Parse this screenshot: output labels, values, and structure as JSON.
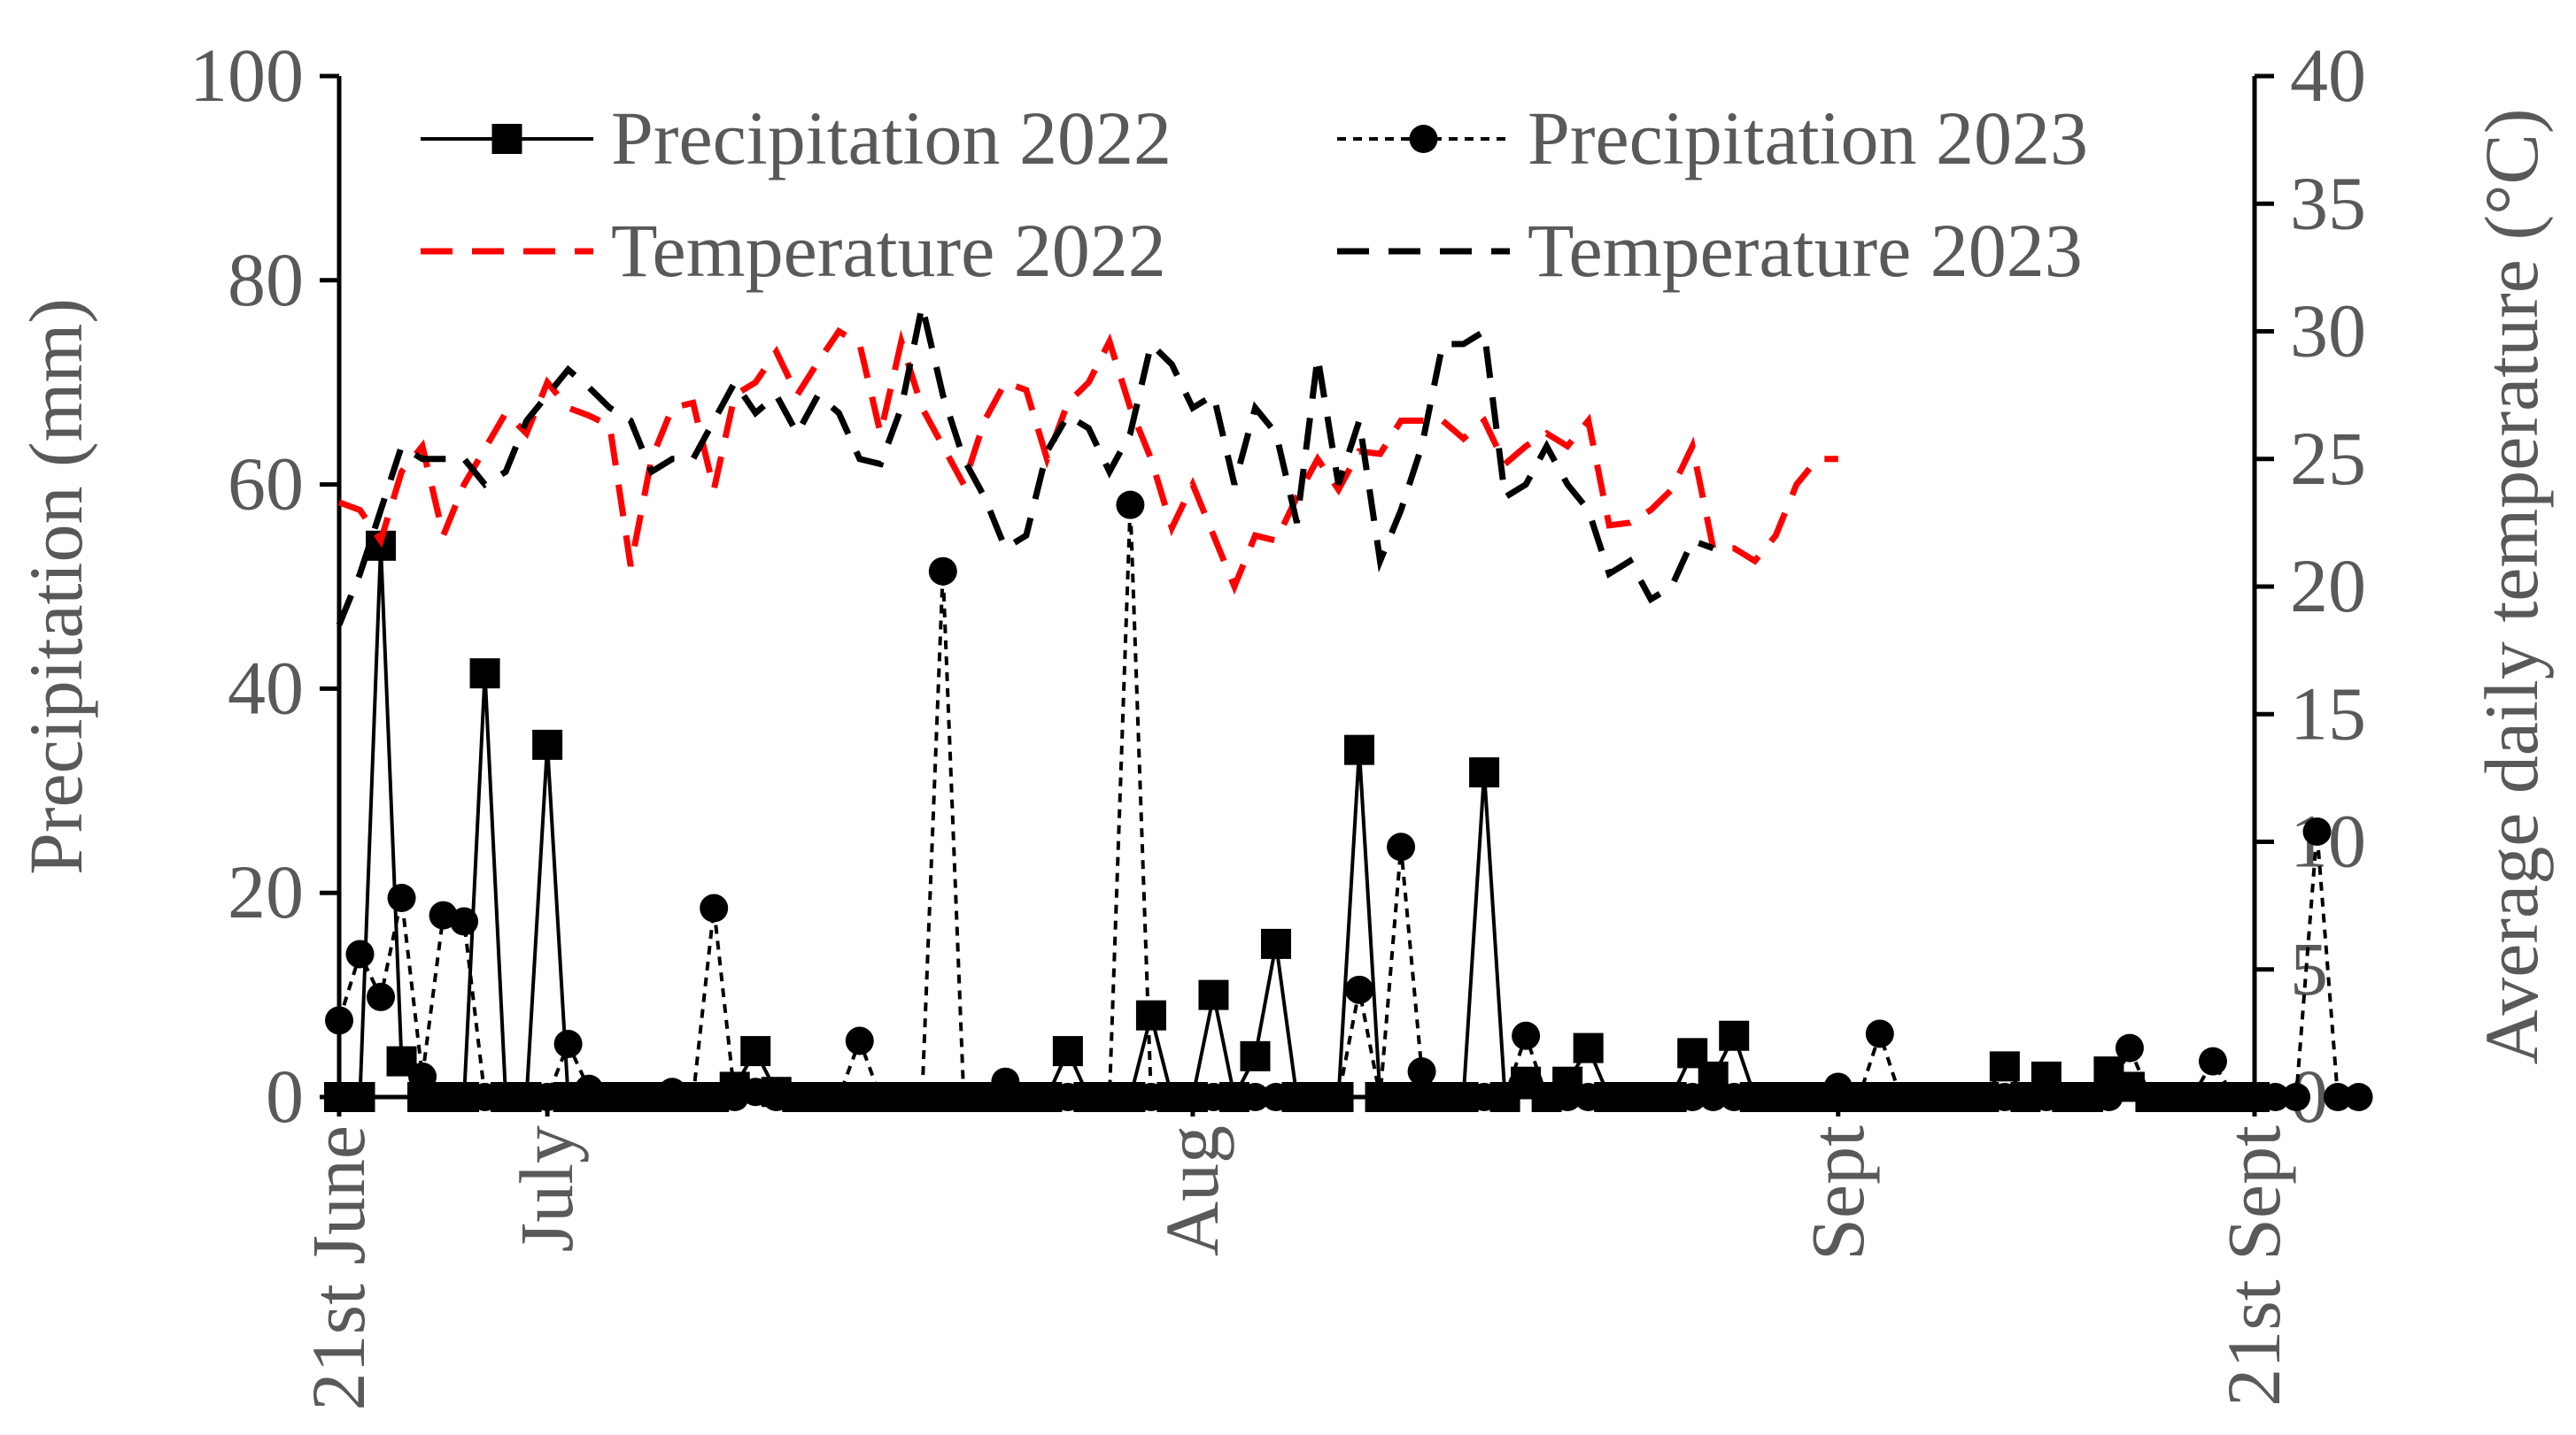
{
  "chart_data": {
    "type": "line",
    "x_axis": {
      "range": [
        0,
        92
      ],
      "ticks": [
        {
          "x": 0,
          "label": "21st June"
        },
        {
          "x": 10,
          "label": "July"
        },
        {
          "x": 41,
          "label": "Aug"
        },
        {
          "x": 72,
          "label": "Sept"
        },
        {
          "x": 92,
          "label": "21st Sept"
        }
      ]
    },
    "y_left": {
      "label": "Precipitation (mm)",
      "range": [
        0,
        100
      ],
      "ticks": [
        0,
        20,
        40,
        60,
        80,
        100
      ]
    },
    "y_right": {
      "label": "Average daily temperature (°C)",
      "range": [
        0,
        40
      ],
      "ticks": [
        0,
        5,
        10,
        15,
        20,
        25,
        30,
        35,
        40
      ]
    },
    "legend": {
      "position": "top",
      "columns": 2
    },
    "series": [
      {
        "name": "Precipitation 2022",
        "axis": "left",
        "style": "solid",
        "marker": "square",
        "color": "#000000",
        "values": [
          0,
          0,
          54,
          3.5,
          0,
          0,
          0,
          41.5,
          0,
          0,
          34.5,
          0,
          0,
          0,
          0,
          0,
          0,
          0,
          0,
          1,
          4.5,
          0.5,
          0,
          0,
          0,
          0,
          0,
          0,
          0,
          0,
          0,
          0,
          0,
          0,
          0,
          4.5,
          0,
          0,
          0,
          8,
          0,
          0,
          10,
          0,
          4,
          15,
          0,
          0,
          0,
          34,
          0,
          0,
          0,
          0,
          0,
          31.8,
          0,
          1.5,
          0,
          1.5,
          4.8,
          0,
          0,
          0,
          0,
          4.3,
          2,
          6,
          0,
          0,
          0,
          0,
          0,
          0,
          0,
          0,
          0,
          0,
          0,
          0,
          3,
          0,
          2,
          0,
          0,
          2.5,
          1,
          0,
          0,
          0,
          0,
          0,
          0
        ]
      },
      {
        "name": "Precipitation 2023",
        "axis": "left",
        "style": "dotted",
        "marker": "circle",
        "color": "#000000",
        "values": [
          7.5,
          14,
          9.8,
          19.5,
          2,
          17.8,
          17.2,
          0,
          0,
          0,
          0,
          5.2,
          0.8,
          0,
          0,
          0,
          0.5,
          0,
          18.5,
          0,
          0.5,
          0,
          0,
          0,
          0,
          5.5,
          0,
          0,
          0,
          51.5,
          0,
          0,
          1.5,
          0,
          0,
          0,
          0,
          0,
          58,
          0,
          0,
          0,
          0,
          0,
          0,
          0,
          0,
          0,
          0,
          10.5,
          0,
          24.5,
          2.5,
          0,
          0,
          0,
          0,
          6,
          0,
          0,
          0,
          0,
          0,
          0,
          0,
          0,
          0,
          0,
          0,
          0,
          0,
          0,
          1,
          0,
          6.2,
          0,
          0,
          0,
          0,
          0,
          0,
          0,
          0,
          0,
          0,
          0,
          4.8,
          0,
          0,
          0,
          3.5,
          0,
          0,
          0,
          0,
          26,
          0,
          0
        ]
      },
      {
        "name": "Temperature 2022",
        "axis": "right",
        "style": "dashed",
        "color": "#ff0000",
        "values": [
          23.3,
          23,
          21.8,
          24.5,
          25.5,
          22,
          24,
          25.4,
          26.8,
          26,
          28,
          27,
          26.7,
          26.3,
          20.8,
          25,
          27,
          27.2,
          23.8,
          27.5,
          28,
          29.2,
          27.5,
          28.8,
          30,
          29.5,
          26,
          29.6,
          27,
          25.5,
          24,
          26.5,
          28,
          27.7,
          25,
          27.2,
          28,
          29.6,
          27,
          25,
          22.3,
          24,
          22,
          20,
          22,
          21.8,
          23.5,
          25,
          23.8,
          25.3,
          25.2,
          26.5,
          26.5,
          26.5,
          25.8,
          26.5,
          24.8,
          25.5,
          26,
          25.5,
          26.5,
          22.4,
          22.5,
          23,
          23.8,
          25.5,
          21.5,
          21.5,
          21,
          22,
          24,
          25,
          25
        ]
      },
      {
        "name": "Temperature 2023",
        "axis": "right",
        "style": "dashed",
        "color": "#000000",
        "values": [
          18.5,
          20.5,
          23,
          25.5,
          25,
          25,
          25,
          24,
          24.5,
          26.5,
          27.5,
          28.5,
          27.8,
          27,
          26.5,
          24.5,
          25,
          25,
          26.5,
          28,
          26.8,
          27.5,
          26,
          27.5,
          26.8,
          25,
          24.8,
          27,
          31,
          27.5,
          25,
          23.5,
          21.5,
          22,
          25.3,
          26.7,
          26.2,
          24.5,
          26,
          29.5,
          28.7,
          27,
          27.5,
          24,
          27,
          26,
          22.5,
          29,
          24,
          26.5,
          21,
          23,
          25.5,
          29.5,
          29.5,
          30,
          23.5,
          24,
          25.5,
          24,
          23,
          20.5,
          21,
          19.5,
          20,
          21.8,
          21.5
        ]
      }
    ]
  }
}
